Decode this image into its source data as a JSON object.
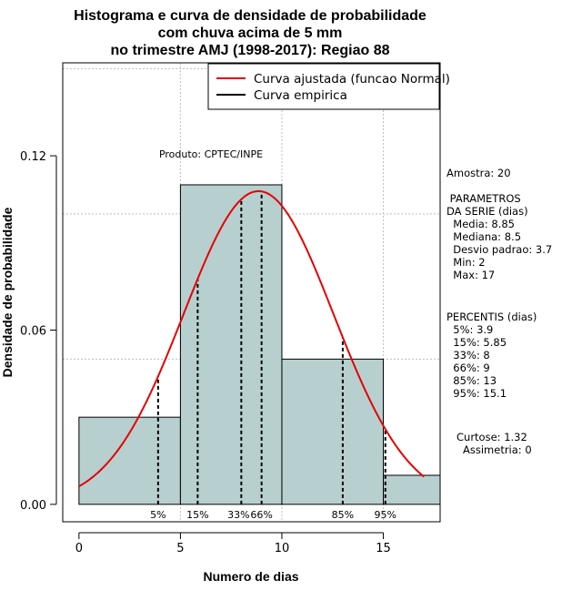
{
  "chart_data": {
    "type": "bar",
    "title": [
      "Histograma e curva de densidade de probabilidade",
      "com chuva acima de 5 mm",
      "no trimestre AMJ (1998-2017): Regiao 88"
    ],
    "xlabel": "Numero de dias",
    "ylabel": "Densidade de probabilidade",
    "xlim": [
      -0.8,
      17.8
    ],
    "ylim": [
      -0.006,
      0.152
    ],
    "x_ticks": [
      0,
      5,
      10,
      15
    ],
    "x_tick_labels": [
      "0",
      "5",
      "10",
      "15"
    ],
    "y_ticks": [
      0.0,
      0.06,
      0.12
    ],
    "y_tick_labels": [
      "0.00",
      "0.06",
      "0.12"
    ],
    "grid_x": [
      5,
      10,
      15
    ],
    "grid_y": [
      0.05,
      0.1,
      0.15
    ],
    "bins": [
      {
        "start": 0,
        "end": 5,
        "density": 0.03
      },
      {
        "start": 5,
        "end": 10,
        "density": 0.11
      },
      {
        "start": 10,
        "end": 15,
        "density": 0.05
      },
      {
        "start": 15,
        "end": 18,
        "density": 0.01
      }
    ],
    "bar_color": "#b7cfcf",
    "curve": {
      "name": "Curva ajustada (funcao Normal)",
      "distribution": "normal",
      "mean": 8.85,
      "sd": 3.7,
      "x_from": 0,
      "x_to": 17,
      "color": "#e60000"
    },
    "empirical": {
      "name": "Curva empirica",
      "color": "#000000"
    },
    "percentiles": [
      {
        "label": "5%",
        "value": 3.9
      },
      {
        "label": "15%",
        "value": 5.85
      },
      {
        "label": "33%",
        "value": 8
      },
      {
        "label": "66%",
        "value": 9
      },
      {
        "label": "85%",
        "value": 13
      },
      {
        "label": "95%",
        "value": 15.1
      }
    ],
    "annotation": "Produto: CPTEC/INPE",
    "legend_position": "top-right"
  },
  "stats": {
    "lines": [
      "Amostra: 20",
      " PARAMETROS",
      "DA SERIE (dias)",
      "  Media: 8.85",
      "  Mediana: 8.5",
      "  Desvio padrao: 3.7",
      "  Min: 2",
      "  Max: 17",
      "PERCENTIS (dias)",
      "  5%: 3.9",
      "  15%: 5.85",
      "  33%: 8",
      "  66%: 9",
      "  85%: 13",
      "  95%: 15.1",
      "Curtose: 1.32",
      "Assimetria: 0"
    ]
  }
}
